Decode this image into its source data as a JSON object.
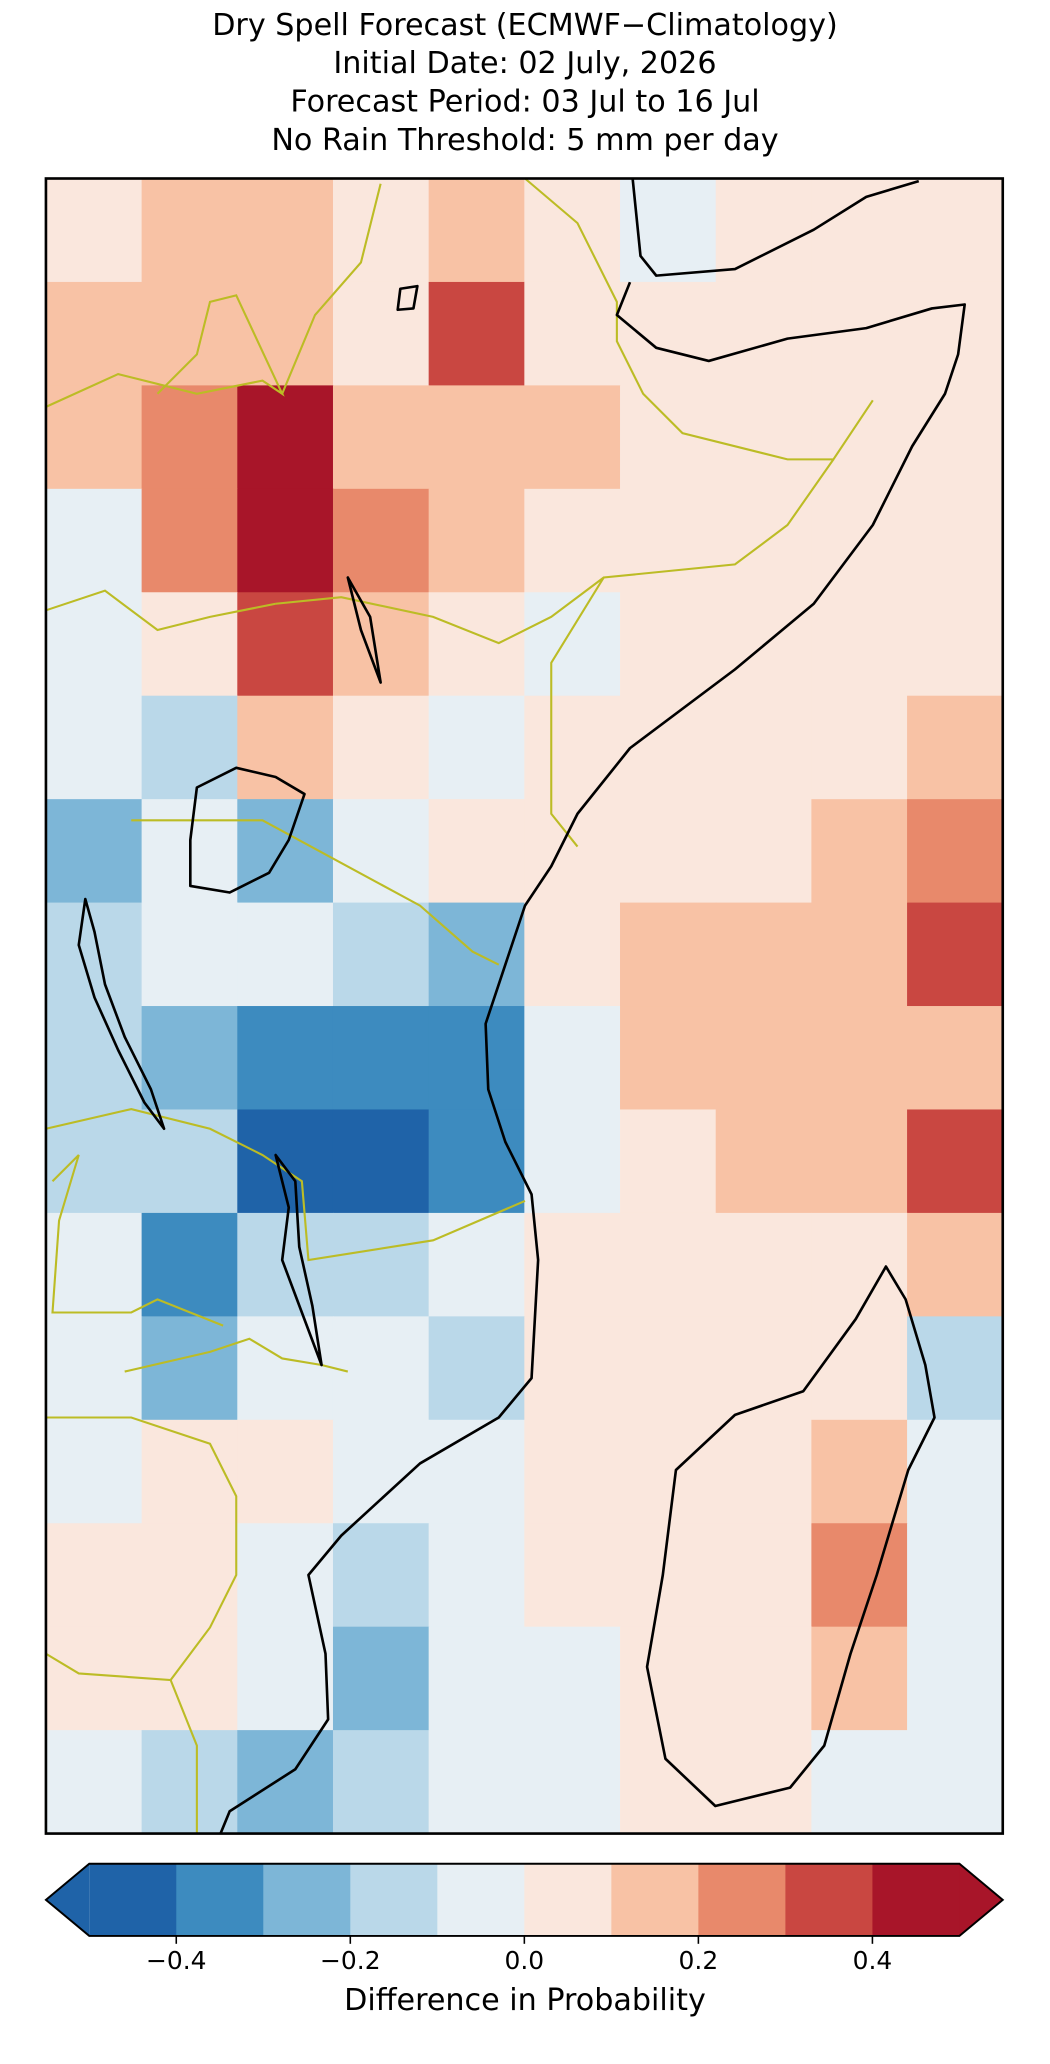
{
  "chart_data": {
    "type": "heatmap",
    "title_lines": [
      "Dry Spell Forecast (ECMWF−Climatology)",
      "Initial Date: 02 July, 2026",
      "Forecast Period: 03 Jul to 16 Jul",
      "No Rain Threshold: 5 mm per day"
    ],
    "colorbar_label": "Difference in Probability",
    "levels": [
      -0.5,
      -0.4,
      -0.3,
      -0.2,
      -0.1,
      0,
      0.1,
      0.2,
      0.3,
      0.4,
      0.5
    ],
    "colors": [
      "#1f63a8",
      "#3d8bbf",
      "#7db6d7",
      "#bad8e9",
      "#e7eff4",
      "#fae7dd",
      "#f8c2a5",
      "#e8896b",
      "#c94741",
      "#a81529"
    ],
    "extend": "both",
    "cticks": [
      {
        "value": -0.4,
        "label": "−0.4"
      },
      {
        "value": -0.2,
        "label": "−0.2"
      },
      {
        "value": 0,
        "label": "0.0"
      },
      0.2,
      0.4
    ],
    "field": [
      [
        0.05,
        0.1,
        0.15,
        0.05,
        0.15,
        0.05,
        -0.05,
        0.05,
        0.05,
        0.05
      ],
      [
        0.15,
        0.15,
        0.15,
        0.05,
        0.35,
        0.05,
        0.05,
        0.05,
        0.05,
        0.05
      ],
      [
        0.1,
        0.25,
        0.4,
        0.1,
        0.15,
        0.15,
        0.05,
        0.05,
        0.05,
        0.05
      ],
      [
        -0.05,
        0.2,
        0.45,
        0.25,
        0.15,
        0.05,
        0.05,
        0.05,
        0.05,
        0.05
      ],
      [
        -0.05,
        0.05,
        0.3,
        0.1,
        0.05,
        -0.05,
        0.05,
        0.05,
        0.05,
        0.05
      ],
      [
        -0.05,
        -0.15,
        0.15,
        0.05,
        -0.05,
        0.05,
        0.05,
        0.05,
        0.05,
        0.15
      ],
      [
        -0.25,
        -0.05,
        -0.25,
        -0.05,
        0.05,
        0.05,
        0.05,
        0.05,
        0.15,
        0.2
      ],
      [
        -0.2,
        -0.05,
        -0.05,
        -0.15,
        -0.3,
        0.05,
        0.1,
        0.15,
        0.15,
        0.3
      ],
      [
        -0.15,
        -0.3,
        -0.35,
        -0.35,
        -0.35,
        -0.05,
        0.1,
        0.15,
        0.15,
        0.15
      ],
      [
        -0.15,
        -0.2,
        -0.45,
        -0.45,
        -0.35,
        -0.05,
        0.05,
        0.15,
        0.15,
        0.3
      ],
      [
        -0.05,
        -0.35,
        -0.15,
        -0.15,
        -0.05,
        0.05,
        0.05,
        0.05,
        0.05,
        0.15
      ],
      [
        -0.05,
        -0.3,
        -0.05,
        -0.05,
        -0.15,
        0.05,
        0.05,
        0.05,
        0.05,
        -0.15
      ],
      [
        -0.05,
        0.05,
        0.05,
        -0.05,
        -0.05,
        0.05,
        0.05,
        0.05,
        0.15,
        -0.05
      ],
      [
        0.05,
        0.05,
        -0.05,
        -0.15,
        -0.05,
        0.05,
        0.05,
        0.05,
        0.2,
        -0.05
      ],
      [
        0.05,
        0.05,
        -0.05,
        -0.25,
        -0.05,
        -0.05,
        0.05,
        0.05,
        0.15,
        -0.05
      ],
      [
        -0.05,
        -0.15,
        -0.25,
        -0.15,
        -0.05,
        -0.05,
        0.05,
        0.05,
        -0.05,
        -0.05
      ]
    ]
  }
}
